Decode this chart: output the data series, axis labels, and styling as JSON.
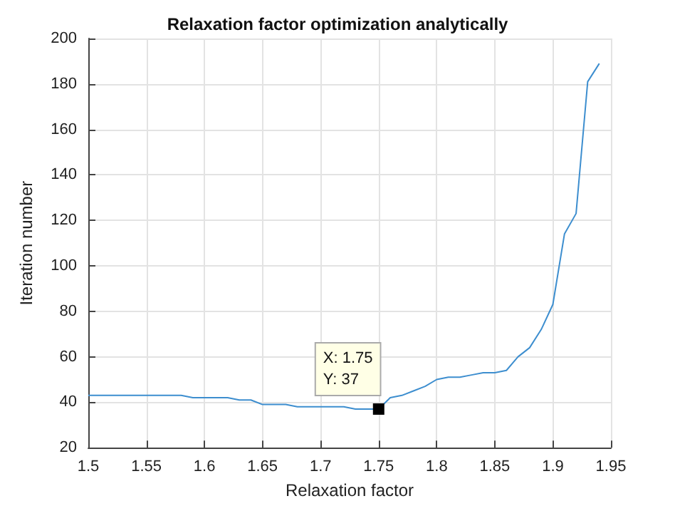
{
  "chart_data": {
    "type": "line",
    "title": "Relaxation factor optimization analytically",
    "xlabel": "Relaxation factor",
    "ylabel": "Iteration number",
    "x": [
      1.5,
      1.51,
      1.52,
      1.53,
      1.54,
      1.55,
      1.56,
      1.57,
      1.58,
      1.59,
      1.6,
      1.61,
      1.62,
      1.63,
      1.64,
      1.65,
      1.66,
      1.67,
      1.68,
      1.69,
      1.7,
      1.71,
      1.72,
      1.73,
      1.74,
      1.75,
      1.76,
      1.77,
      1.78,
      1.79,
      1.8,
      1.81,
      1.82,
      1.83,
      1.84,
      1.85,
      1.86,
      1.87,
      1.88,
      1.89,
      1.9,
      1.91,
      1.92,
      1.93,
      1.94
    ],
    "series": [
      {
        "color": "#3d8ecf",
        "values": [
          43,
          43,
          43,
          43,
          43,
          43,
          43,
          43,
          43,
          42,
          42,
          42,
          42,
          41,
          41,
          39,
          39,
          39,
          38,
          38,
          38,
          38,
          38,
          37,
          37,
          37,
          42,
          43,
          45,
          47,
          50,
          51,
          51,
          52,
          53,
          53,
          54,
          60,
          64,
          72,
          83,
          114,
          123,
          181,
          189
        ]
      }
    ],
    "xlim": [
      1.5,
      1.95
    ],
    "xticks": [
      1.5,
      1.55,
      1.6,
      1.65,
      1.7,
      1.75,
      1.8,
      1.85,
      1.9,
      1.95
    ],
    "ylim": [
      20,
      200
    ],
    "yticks": [
      20,
      40,
      60,
      80,
      100,
      120,
      140,
      160,
      180,
      200
    ],
    "grid": true,
    "marker": "none",
    "line_style": "solid",
    "annotations": [
      {
        "text": "X: 1.75\nY: 37",
        "x": 1.75,
        "y": 37
      }
    ]
  }
}
